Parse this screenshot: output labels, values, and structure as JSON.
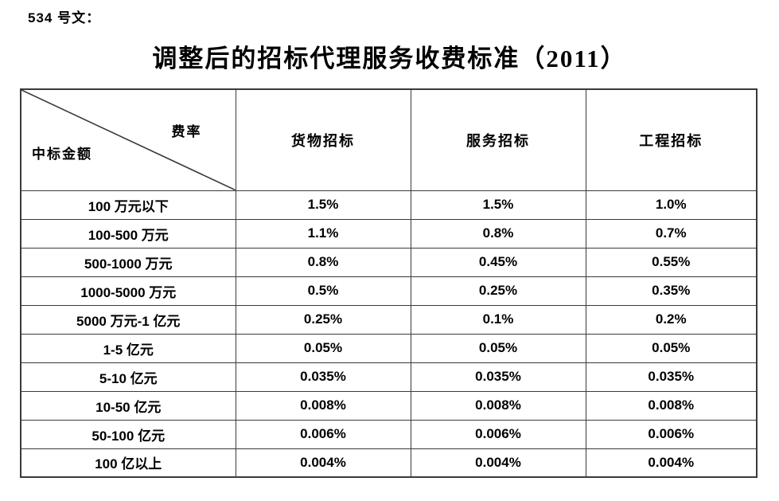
{
  "doc_label": "534 号文：",
  "title": "调整后的招标代理服务收费标准（2011）",
  "table": {
    "corner": {
      "top_right": "费率",
      "bottom_left": "中标金额"
    },
    "columns": [
      "货物招标",
      "服务招标",
      "工程招标"
    ],
    "rows": [
      {
        "range": "100 万元以下",
        "values": [
          "1.5%",
          "1.5%",
          "1.0%"
        ]
      },
      {
        "range": "100-500 万元",
        "values": [
          "1.1%",
          "0.8%",
          "0.7%"
        ]
      },
      {
        "range": "500-1000 万元",
        "values": [
          "0.8%",
          "0.45%",
          "0.55%"
        ]
      },
      {
        "range": "1000-5000 万元",
        "values": [
          "0.5%",
          "0.25%",
          "0.35%"
        ]
      },
      {
        "range": "5000 万元-1 亿元",
        "values": [
          "0.25%",
          "0.1%",
          "0.2%"
        ]
      },
      {
        "range": "1-5 亿元",
        "values": [
          "0.05%",
          "0.05%",
          "0.05%"
        ]
      },
      {
        "range": "5-10 亿元",
        "values": [
          "0.035%",
          "0.035%",
          "0.035%"
        ]
      },
      {
        "range": "10-50 亿元",
        "values": [
          "0.008%",
          "0.008%",
          "0.008%"
        ]
      },
      {
        "range": "50-100 亿元",
        "values": [
          "0.006%",
          "0.006%",
          "0.006%"
        ]
      },
      {
        "range": "100 亿以上",
        "values": [
          "0.004%",
          "0.004%",
          "0.004%"
        ]
      }
    ]
  },
  "colors": {
    "text": "#000000",
    "border": "#3a3a3a",
    "background": "#ffffff"
  }
}
